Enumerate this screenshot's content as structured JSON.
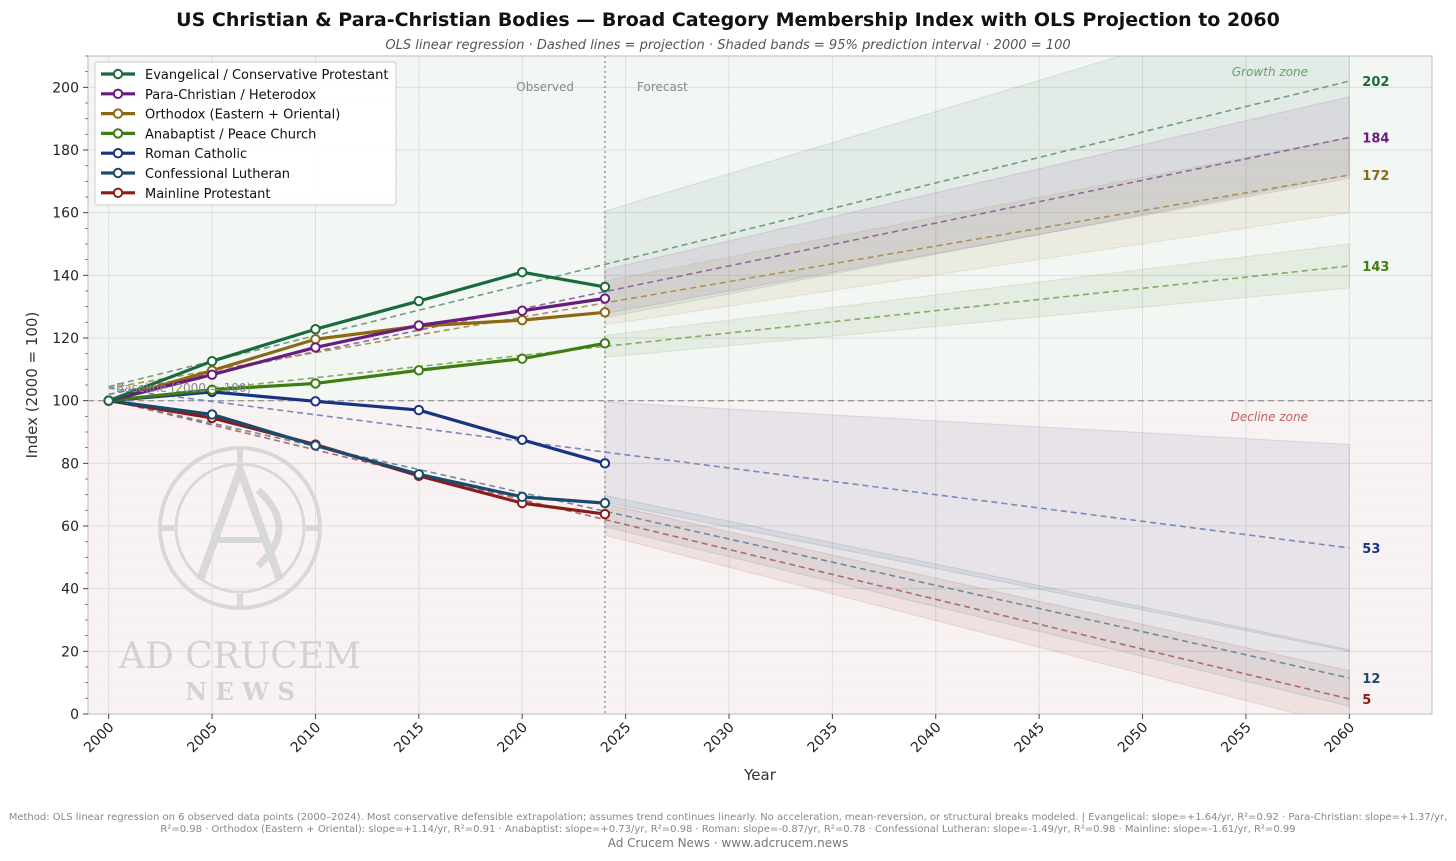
{
  "title": "US Christian & Para-Christian Bodies — Broad Category Membership Index with OLS Projection to 2060",
  "subtitle": "OLS linear regression  ·  Dashed lines = projection  ·  Shaded bands = 95% prediction interval  ·  2000 = 100",
  "zones": {
    "growth": "Growth zone",
    "decline": "Decline zone",
    "observed": "Observed",
    "forecast": "Forecast"
  },
  "baseline_label": "Baseline (2000 = 100)",
  "watermark": {
    "brand": "AD CRUCEM",
    "sub": "N E W S"
  },
  "footer": {
    "method": "Method: OLS linear regression on 6 observed data points (2000–2024). Most conservative defensible extrapolation; assumes trend continues linearly. No acceleration, mean-reversion, or structural breaks modeled.  |  Evangelical: slope=+1.64/yr, R²=0.92  ·  Para-Christian: slope=+1.37/yr, R²=0.98  ·  Orthodox (Eastern + Oriental): slope=+1.14/yr, R²=0.91  ·  Anabaptist: slope=+0.73/yr, R²=0.98  ·  Roman: slope=-0.87/yr, R²=0.78  ·  Confessional Lutheran: slope=-1.49/yr, R²=0.98  ·  Mainline: slope=-1.61/yr, R²=0.99",
    "credit": "Ad Crucem News  ·  www.adcrucem.news"
  },
  "chart_data": {
    "type": "line",
    "xlabel": "Year",
    "ylabel": "Index (2000 = 100)",
    "xlim": [
      1999,
      2064
    ],
    "ylim": [
      0,
      210
    ],
    "xticks": [
      2000,
      2005,
      2010,
      2015,
      2020,
      2025,
      2030,
      2035,
      2040,
      2045,
      2050,
      2055,
      2060
    ],
    "yticks": [
      0,
      20,
      40,
      60,
      80,
      100,
      120,
      140,
      160,
      180,
      200
    ],
    "grid": true,
    "legend_position": "top-left",
    "baseline": 100,
    "observed_end": 2024,
    "projection_end": 2060,
    "x_observed": [
      2000,
      2005,
      2010,
      2015,
      2020,
      2024
    ],
    "series": [
      {
        "name": "Evangelical / Conservative Protestant",
        "color": "#1a6b3c",
        "proj_color": "#6f9e80",
        "values": [
          100,
          112.6,
          122.8,
          131.8,
          141,
          136.3
        ],
        "proj_start": 104.5,
        "proj_end": 202,
        "end_label": "202",
        "band": [
          17,
          30
        ]
      },
      {
        "name": "Para-Christian / Heterodox",
        "color": "#6a1b7e",
        "proj_color": "#8f6aa0",
        "values": [
          100,
          108.3,
          117,
          124,
          128.7,
          132.6
        ],
        "proj_start": 102,
        "proj_end": 184,
        "end_label": "184",
        "band": [
          7,
          13
        ]
      },
      {
        "name": "Orthodox (Eastern + Oriental)",
        "color": "#8b6914",
        "proj_color": "#ad9155",
        "values": [
          100,
          109.6,
          119.6,
          123.8,
          125.7,
          128.2
        ],
        "proj_start": 104,
        "proj_end": 172,
        "end_label": "172",
        "band": [
          7,
          12
        ]
      },
      {
        "name": "Anabaptist / Peace Church",
        "color": "#3e7d14",
        "proj_color": "#82ad62",
        "values": [
          100,
          103.5,
          105.5,
          109.7,
          113.4,
          118.3
        ],
        "proj_start": 100.2,
        "proj_end": 143,
        "end_label": "143",
        "band": [
          3.5,
          7
        ]
      },
      {
        "name": "Roman Catholic",
        "color": "#1a3282",
        "proj_color": "#7b88b8",
        "values": [
          100,
          102.8,
          99.8,
          97,
          87.5,
          80
        ],
        "proj_start": 104,
        "proj_end": 53,
        "end_label": "53",
        "band": [
          16,
          33
        ]
      },
      {
        "name": "Confessional Lutheran",
        "color": "#1a4a6e",
        "proj_color": "#6f8aa0",
        "values": [
          100,
          95.6,
          85.7,
          76.5,
          69.3,
          67.3
        ],
        "proj_start": 100.2,
        "proj_end": 11.5,
        "end_label": "12",
        "band": [
          5,
          9
        ]
      },
      {
        "name": "Mainline Protestant",
        "color": "#8b1a1a",
        "proj_color": "#b06a6a",
        "values": [
          100,
          94.5,
          86,
          76,
          67.3,
          63.8
        ],
        "proj_start": 100.2,
        "proj_end": 4.8,
        "end_label": "5",
        "band": [
          5,
          9
        ]
      }
    ]
  }
}
